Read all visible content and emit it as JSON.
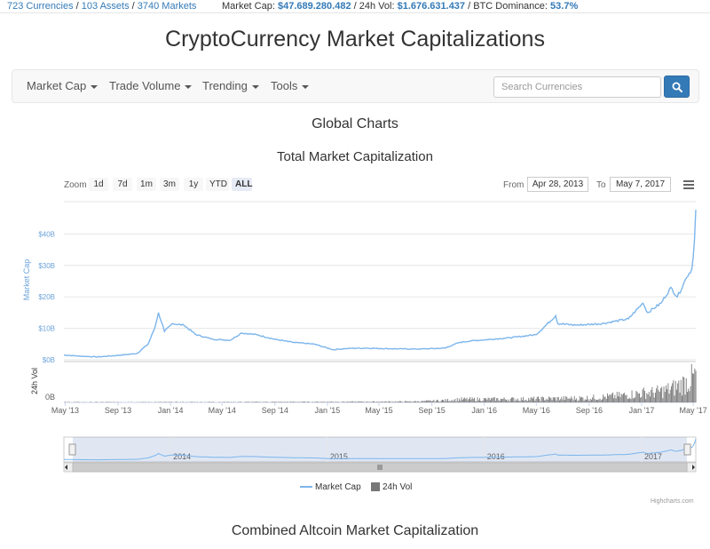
{
  "topbar": {
    "currencies": "723 Currencies",
    "assets": "103 Assets",
    "markets": "3740 Markets",
    "sep": " / ",
    "market_cap_label": "Market Cap:",
    "market_cap_value": "$47.689.280.482",
    "vol_label": "24h Vol:",
    "vol_value": "$1.676.631.437",
    "btc_label": "BTC Dominance:",
    "btc_value": "53.7%"
  },
  "site_title": "CryptoCurrency Market Capitalizations",
  "nav": {
    "items": [
      {
        "label": "Market Cap"
      },
      {
        "label": "Trade Volume"
      },
      {
        "label": "Trending"
      },
      {
        "label": "Tools"
      }
    ],
    "search_placeholder": "Search Currencies"
  },
  "global_charts_heading": "Global Charts",
  "controls": {
    "zoom_label": "Zoom",
    "zoom_options": [
      "1d",
      "7d",
      "1m",
      "3m",
      "1y",
      "YTD",
      "ALL"
    ],
    "active_zoom": "ALL",
    "from_label": "From",
    "from_value": "Apr 28, 2013",
    "to_label": "To",
    "to_value": "May 7, 2017"
  },
  "chart_data": {
    "type": "area",
    "title": "Total Market Capitalization",
    "ylabel": "Market Cap",
    "ylabel2": "24h Vol",
    "y_ticks": [
      "$0B",
      "$10B",
      "$20B",
      "$30B",
      "$40B"
    ],
    "ylim": [
      0,
      48
    ],
    "vol_ticks": [
      "0B"
    ],
    "x_ticks": [
      "May '13",
      "Sep '13",
      "Jan '14",
      "May '14",
      "Sep '14",
      "Jan '15",
      "May '15",
      "Sep '15",
      "Jan '16",
      "May '16",
      "Sep '16",
      "Jan '17",
      "May '17"
    ],
    "navigator_ticks": [
      "2014",
      "2015",
      "2016",
      "2017"
    ],
    "x_range": [
      "2013-04-28",
      "2017-05-07"
    ],
    "series": [
      {
        "name": "Market Cap",
        "color": "#7cb5ec",
        "x": [
          "2013-04-28",
          "2013-06-01",
          "2013-07-15",
          "2013-09-01",
          "2013-10-15",
          "2013-11-10",
          "2013-11-25",
          "2013-12-04",
          "2013-12-18",
          "2014-01-05",
          "2014-02-01",
          "2014-03-01",
          "2014-04-10",
          "2014-05-20",
          "2014-06-15",
          "2014-07-20",
          "2014-09-01",
          "2014-10-15",
          "2014-12-01",
          "2015-01-14",
          "2015-02-15",
          "2015-04-01",
          "2015-06-01",
          "2015-08-01",
          "2015-10-01",
          "2015-11-04",
          "2015-12-01",
          "2016-01-15",
          "2016-03-01",
          "2016-05-01",
          "2016-06-15",
          "2016-06-20",
          "2016-08-01",
          "2016-10-01",
          "2016-12-01",
          "2017-01-04",
          "2017-01-15",
          "2017-02-15",
          "2017-03-10",
          "2017-03-25",
          "2017-04-15",
          "2017-04-28",
          "2017-05-04",
          "2017-05-07"
        ],
        "values": [
          1.5,
          1.2,
          0.9,
          1.4,
          2.0,
          5.0,
          10.0,
          15.0,
          9.0,
          11.5,
          11.0,
          8.0,
          6.5,
          6.2,
          8.5,
          8.0,
          6.5,
          5.5,
          5.0,
          3.2,
          3.6,
          3.7,
          3.5,
          3.4,
          3.7,
          5.5,
          6.0,
          6.5,
          7.0,
          8.0,
          14.0,
          11.5,
          11.0,
          11.5,
          13.0,
          18.0,
          15.0,
          18.0,
          23.0,
          20.0,
          26.0,
          29.0,
          38.0,
          47.7
        ]
      },
      {
        "name": "24h Vol",
        "color": "#777777",
        "x": [
          "2013-04-28",
          "2015-06-01",
          "2015-11-04",
          "2016-06-15",
          "2017-01-04",
          "2017-05-07"
        ],
        "values": [
          0.02,
          0.05,
          0.2,
          0.25,
          0.6,
          1.68
        ]
      }
    ],
    "legend_position": "bottom"
  },
  "credits": "Highcharts.com",
  "altcoin_heading": "Combined Altcoin Market Capitalization"
}
